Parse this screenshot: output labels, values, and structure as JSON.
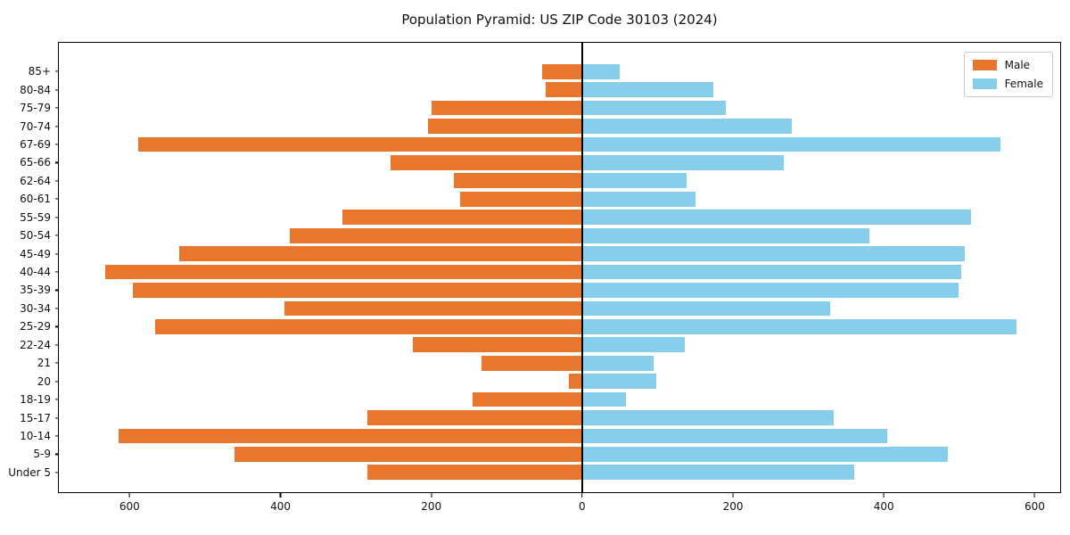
{
  "title": "Population Pyramid: US ZIP Code 30103 (2024)",
  "legend": {
    "male_label": "Male",
    "female_label": "Female",
    "position": "upper right"
  },
  "colors": {
    "male": "#e8762c",
    "female": "#87ceeb",
    "axis": "#000000",
    "background": "#ffffff"
  },
  "chart_data": {
    "type": "bar",
    "subtype": "population-pyramid",
    "orientation": "horizontal",
    "title": "Population Pyramid: US ZIP Code 30103 (2024)",
    "grid": false,
    "legend_position": "upper right",
    "categories_top_to_bottom": [
      "85+",
      "80-84",
      "75-79",
      "70-74",
      "67-69",
      "65-66",
      "62-64",
      "60-61",
      "55-59",
      "50-54",
      "45-49",
      "40-44",
      "35-39",
      "30-34",
      "25-29",
      "22-24",
      "21",
      "20",
      "18-19",
      "15-17",
      "10-14",
      "5-9",
      "Under 5"
    ],
    "series": [
      {
        "name": "Male",
        "side": "left",
        "color": "#e8762c",
        "values": [
          53,
          48,
          200,
          205,
          590,
          254,
          170,
          162,
          318,
          388,
          535,
          633,
          597,
          395,
          567,
          225,
          134,
          18,
          146,
          285,
          616,
          462,
          285
        ]
      },
      {
        "name": "Female",
        "side": "right",
        "color": "#87ceeb",
        "values": [
          50,
          174,
          191,
          278,
          556,
          268,
          139,
          151,
          517,
          382,
          508,
          503,
          500,
          330,
          577,
          136,
          95,
          98,
          58,
          334,
          405,
          486,
          361
        ]
      }
    ],
    "xlim_left": 695,
    "xlim_right": 635,
    "x_tick_values": [
      -600,
      -400,
      -200,
      0,
      200,
      400,
      600
    ],
    "x_tick_labels": [
      "600",
      "400",
      "200",
      "0",
      "200",
      "400",
      "600"
    ]
  }
}
